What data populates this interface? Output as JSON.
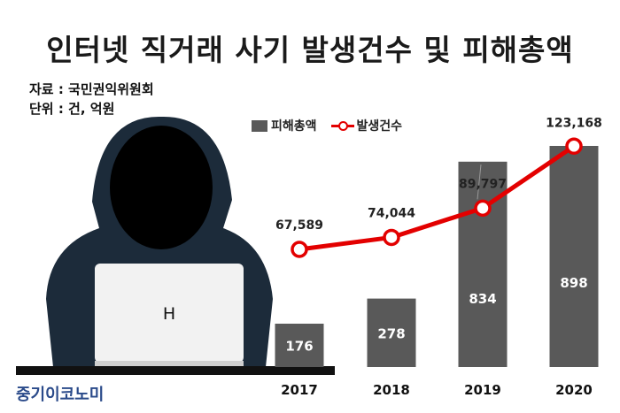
{
  "title": "인터넷 직거래 사기 발생건수 및 피해총액",
  "source": "자료 : 국민권익위원회",
  "unit": "단위 : 건, 억원",
  "brand": "중기이코노미",
  "illustration": {
    "laptop_letter": "H",
    "hacker-icon": "hooded-hacker-icon"
  },
  "colors": {
    "bar": "#595959",
    "line": "#e30000",
    "bar_label": "#ffffff"
  },
  "chart_data": {
    "type": "bar",
    "categories": [
      "2017",
      "2018",
      "2019",
      "2020"
    ],
    "series": [
      {
        "name": "피해총액",
        "type": "bar",
        "values": [
          176,
          278,
          834,
          898
        ]
      },
      {
        "name": "발생건수",
        "type": "line",
        "values": [
          67589,
          74044,
          89797,
          123168
        ],
        "labels": [
          "67,589",
          "74,044",
          "89,797",
          "123,168"
        ]
      }
    ],
    "legend": "top-left",
    "grid": false
  }
}
